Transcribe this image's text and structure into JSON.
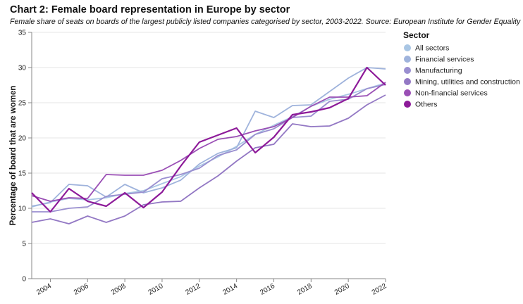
{
  "title": "Chart 2: Female board representation in Europe by sector",
  "subtitle": "Female share of seats on boards of the largest publicly listed companies categorised by sector, 2003-2022. Source: European Institute for Gender Equality",
  "chart_data": {
    "type": "line",
    "ylabel": "Percentage of board that are women",
    "xlabel": "",
    "ylim": [
      0,
      35
    ],
    "xlim": [
      2003,
      2022
    ],
    "y_ticks": [
      0,
      5,
      10,
      15,
      20,
      25,
      30,
      35
    ],
    "x_ticks": [
      2004,
      2006,
      2008,
      2010,
      2012,
      2014,
      2016,
      2018,
      2020,
      2022
    ],
    "grid": "horizontal",
    "legend_title": "Sector",
    "legend_position": "right",
    "x": [
      2003,
      2004,
      2005,
      2006,
      2007,
      2008,
      2009,
      2010,
      2011,
      2012,
      2013,
      2014,
      2015,
      2016,
      2017,
      2018,
      2019,
      2020,
      2021,
      2022
    ],
    "series": [
      {
        "name": "All sectors",
        "color": "#a9c6e4",
        "values": [
          10.2,
          10.9,
          11.4,
          11.2,
          11.5,
          12.1,
          12.5,
          13.5,
          14.5,
          16.0,
          17.3,
          18.8,
          20.5,
          21.8,
          23.0,
          24.5,
          25.5,
          26.2,
          27.0,
          27.8
        ]
      },
      {
        "name": "Financial services",
        "color": "#9fb3dc",
        "values": [
          10.3,
          10.8,
          13.4,
          13.2,
          11.6,
          13.4,
          12.2,
          12.9,
          14.0,
          16.3,
          17.8,
          18.6,
          23.8,
          22.9,
          24.6,
          24.7,
          26.6,
          28.5,
          30.0,
          29.8
        ]
      },
      {
        "name": "Manufacturing",
        "color": "#9a8fd0",
        "values": [
          9.5,
          9.5,
          10.0,
          10.2,
          11.7,
          12.0,
          12.3,
          14.2,
          14.8,
          15.7,
          17.5,
          18.3,
          20.5,
          21.3,
          22.9,
          23.1,
          25.2,
          25.5,
          27.0,
          27.6
        ]
      },
      {
        "name": "Mining, utilities and construction",
        "color": "#9378c4",
        "values": [
          8.0,
          8.5,
          7.8,
          8.9,
          8.0,
          8.9,
          10.5,
          10.9,
          11.0,
          12.9,
          14.6,
          16.7,
          18.6,
          19.1,
          22.0,
          21.6,
          21.7,
          22.8,
          24.7,
          26.1
        ]
      },
      {
        "name": "Non-financial services",
        "color": "#9a4fb5",
        "values": [
          11.8,
          11.0,
          11.5,
          11.4,
          14.8,
          14.7,
          14.7,
          15.4,
          16.8,
          18.5,
          19.8,
          20.2,
          21.0,
          21.6,
          22.9,
          24.5,
          25.8,
          25.8,
          26.0,
          27.9
        ]
      },
      {
        "name": "Others",
        "color": "#8d1a99",
        "values": [
          12.2,
          9.5,
          12.8,
          11.0,
          10.3,
          12.2,
          10.1,
          12.3,
          16.0,
          19.4,
          20.4,
          21.4,
          17.9,
          20.1,
          23.3,
          23.7,
          24.3,
          25.6,
          30.0,
          27.5
        ]
      }
    ]
  }
}
